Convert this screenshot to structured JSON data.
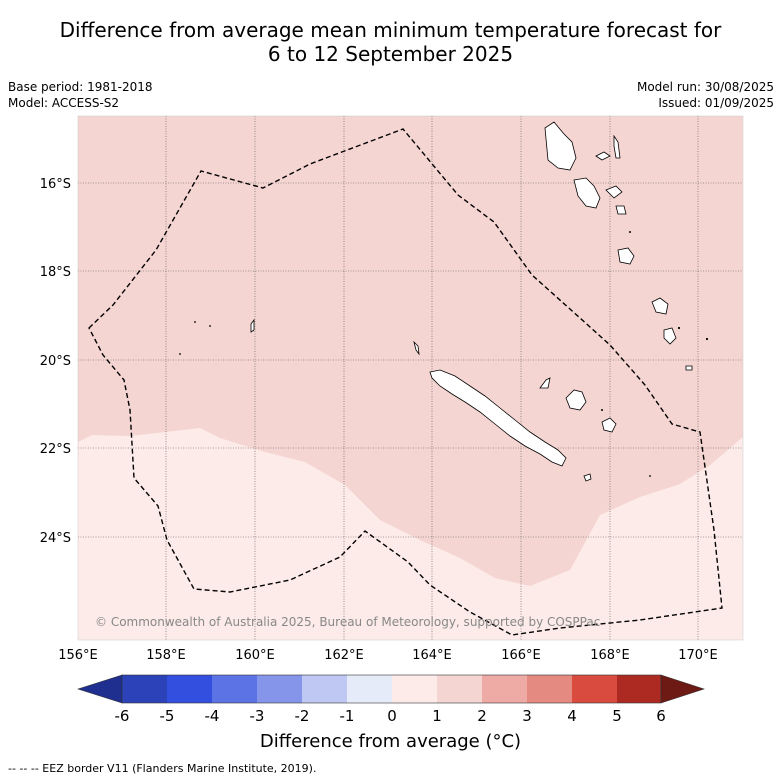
{
  "title": {
    "line1": "Difference from average mean minimum temperature forecast for",
    "line2": "6 to 12 September 2025"
  },
  "meta": {
    "base_period": "Base period: 1981-2018",
    "model": "Model: ACCESS-S2",
    "model_run": "Model run: 30/08/2025",
    "issued": "Issued: 01/09/2025"
  },
  "map": {
    "lat_labels": [
      "16°S",
      "18°S",
      "20°S",
      "22°S",
      "24°S"
    ],
    "lon_labels": [
      "156°E",
      "158°E",
      "160°E",
      "162°E",
      "164°E",
      "166°E",
      "168°E",
      "170°E"
    ],
    "copyright": "© Commonwealth of Australia 2025, Bureau of Meteorology, supported by COSPPac",
    "fill_colors": {
      "anomaly_1_to_2": "#f5d5d2",
      "anomaly_0_to_1": "#fcebe8"
    },
    "border_color": "#000000"
  },
  "colorbar": {
    "ticks": [
      "-6",
      "-5",
      "-4",
      "-3",
      "-2",
      "-1",
      "0",
      "1",
      "2",
      "3",
      "4",
      "5",
      "6"
    ],
    "colors": [
      "#1e2f8f",
      "#2b42b8",
      "#324fdf",
      "#5c73e6",
      "#8595ea",
      "#bfc7f3",
      "#e6ebf9",
      "#fcebe8",
      "#f5d5d2",
      "#eeaba5",
      "#e58a81",
      "#d94a3f",
      "#ac2a22",
      "#6d1a14"
    ],
    "label": "Difference from average (°C)"
  },
  "footer": {
    "legend": "--  --  -- EEZ border V11 (Flanders Marine Institute, 2019)."
  }
}
